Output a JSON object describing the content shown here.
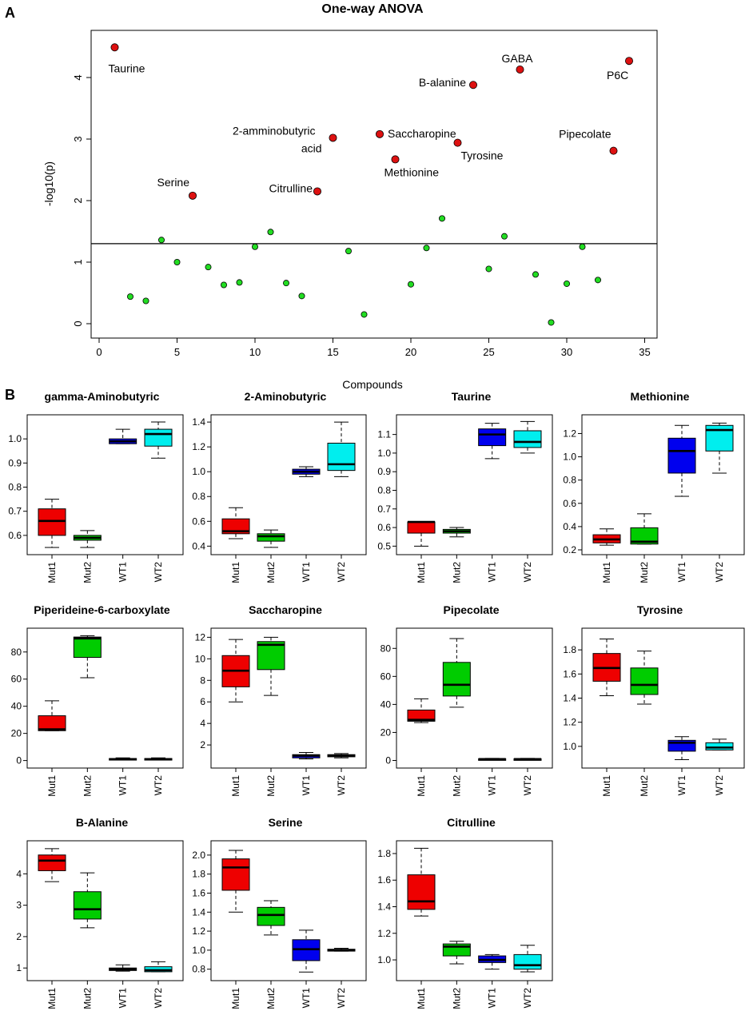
{
  "panel_a": {
    "letter": "A",
    "chart_data": {
      "type": "scatter",
      "title": "One-way ANOVA",
      "xlabel": "Compounds",
      "ylabel": "-log10(p)",
      "xlim": [
        0,
        35
      ],
      "ylim": [
        0,
        4.6
      ],
      "xticks": [
        0,
        5,
        10,
        15,
        20,
        25,
        30,
        35
      ],
      "yticks": [
        0,
        1,
        2,
        3,
        4
      ],
      "threshold": 1.3,
      "colors": {
        "significant": "#dd1111",
        "not_significant": "#22dd22"
      },
      "points": [
        {
          "x": 1,
          "y": 4.49,
          "sig": true,
          "label": "Taurine"
        },
        {
          "x": 2,
          "y": 0.44,
          "sig": false
        },
        {
          "x": 3,
          "y": 0.37,
          "sig": false
        },
        {
          "x": 4,
          "y": 1.36,
          "sig": false
        },
        {
          "x": 5,
          "y": 1.0,
          "sig": false
        },
        {
          "x": 6,
          "y": 2.08,
          "sig": true,
          "label": "Serine"
        },
        {
          "x": 7,
          "y": 0.92,
          "sig": false
        },
        {
          "x": 8,
          "y": 0.63,
          "sig": false
        },
        {
          "x": 9,
          "y": 0.67,
          "sig": false
        },
        {
          "x": 10,
          "y": 1.25,
          "sig": false
        },
        {
          "x": 11,
          "y": 1.49,
          "sig": false
        },
        {
          "x": 12,
          "y": 0.66,
          "sig": false
        },
        {
          "x": 13,
          "y": 0.45,
          "sig": false
        },
        {
          "x": 14,
          "y": 2.15,
          "sig": true,
          "label": "Citrulline"
        },
        {
          "x": 15,
          "y": 3.02,
          "sig": true,
          "label": "2-amminobutyric acid"
        },
        {
          "x": 16,
          "y": 1.18,
          "sig": false
        },
        {
          "x": 17,
          "y": 0.15,
          "sig": false
        },
        {
          "x": 18,
          "y": 3.08,
          "sig": true,
          "label": "Saccharopine"
        },
        {
          "x": 19,
          "y": 2.67,
          "sig": true,
          "label": "Methionine"
        },
        {
          "x": 20,
          "y": 0.64,
          "sig": false
        },
        {
          "x": 21,
          "y": 1.23,
          "sig": false
        },
        {
          "x": 22,
          "y": 1.71,
          "sig": false
        },
        {
          "x": 23,
          "y": 2.94,
          "sig": true,
          "label": "Tyrosine"
        },
        {
          "x": 24,
          "y": 3.88,
          "sig": true,
          "label": "B-alanine"
        },
        {
          "x": 25,
          "y": 0.89,
          "sig": false
        },
        {
          "x": 26,
          "y": 1.42,
          "sig": false
        },
        {
          "x": 27,
          "y": 4.13,
          "sig": true,
          "label": "GABA"
        },
        {
          "x": 28,
          "y": 0.8,
          "sig": false
        },
        {
          "x": 29,
          "y": 0.02,
          "sig": false
        },
        {
          "x": 30,
          "y": 0.65,
          "sig": false
        },
        {
          "x": 31,
          "y": 1.25,
          "sig": false
        },
        {
          "x": 32,
          "y": 0.71,
          "sig": false
        },
        {
          "x": 33,
          "y": 2.81,
          "sig": true,
          "label": "Pipecolate"
        },
        {
          "x": 34,
          "y": 4.27,
          "sig": true,
          "label": "P6C"
        }
      ]
    }
  },
  "panel_b": {
    "letter": "B",
    "groups": [
      "Mut1",
      "Mut2",
      "WT1",
      "WT2"
    ],
    "group_colors": [
      "#ee0000",
      "#00cc00",
      "#0000ee",
      "#00eeee"
    ],
    "chart_data": [
      {
        "type": "box",
        "title": "gamma-Aminobutyric",
        "ylim": [
          0.54,
          1.08
        ],
        "yticks": [
          0.6,
          0.7,
          0.8,
          0.9,
          1.0
        ],
        "ytick_labels": [
          "0.6",
          "0.7",
          "0.8",
          "0.9",
          "1.0"
        ],
        "boxes": [
          {
            "group": "Mut1",
            "min": 0.55,
            "q1": 0.6,
            "median": 0.66,
            "q3": 0.71,
            "max": 0.75
          },
          {
            "group": "Mut2",
            "min": 0.55,
            "q1": 0.58,
            "median": 0.59,
            "q3": 0.6,
            "max": 0.62
          },
          {
            "group": "WT1",
            "min": 0.98,
            "q1": 0.98,
            "median": 0.99,
            "q3": 1.0,
            "max": 1.04
          },
          {
            "group": "WT2",
            "min": 0.92,
            "q1": 0.97,
            "median": 1.02,
            "q3": 1.04,
            "max": 1.07
          }
        ]
      },
      {
        "type": "box",
        "title": "2-Aminobutyric",
        "ylim": [
          0.37,
          1.42
        ],
        "yticks": [
          0.4,
          0.6,
          0.8,
          1.0,
          1.2,
          1.4
        ],
        "ytick_labels": [
          "0.4",
          "0.6",
          "0.8",
          "1.0",
          "1.2",
          "1.4"
        ],
        "boxes": [
          {
            "group": "Mut1",
            "min": 0.46,
            "q1": 0.5,
            "median": 0.52,
            "q3": 0.62,
            "max": 0.71
          },
          {
            "group": "Mut2",
            "min": 0.39,
            "q1": 0.44,
            "median": 0.48,
            "q3": 0.5,
            "max": 0.53
          },
          {
            "group": "WT1",
            "min": 0.96,
            "q1": 0.98,
            "median": 1.0,
            "q3": 1.02,
            "max": 1.04
          },
          {
            "group": "WT2",
            "min": 0.96,
            "q1": 1.01,
            "median": 1.06,
            "q3": 1.23,
            "max": 1.4
          }
        ]
      },
      {
        "type": "box",
        "title": "Taurine",
        "ylim": [
          0.48,
          1.18
        ],
        "yticks": [
          0.5,
          0.6,
          0.7,
          0.8,
          0.9,
          1.0,
          1.1
        ],
        "ytick_labels": [
          "0.5",
          "0.6",
          "0.7",
          "0.8",
          "0.9",
          "1.0",
          "1.1"
        ],
        "boxes": [
          {
            "group": "Mut1",
            "min": 0.5,
            "q1": 0.57,
            "median": 0.63,
            "q3": 0.63,
            "max": 0.63
          },
          {
            "group": "Mut2",
            "min": 0.55,
            "q1": 0.57,
            "median": 0.58,
            "q3": 0.59,
            "max": 0.6
          },
          {
            "group": "WT1",
            "min": 0.97,
            "q1": 1.04,
            "median": 1.1,
            "q3": 1.13,
            "max": 1.16
          },
          {
            "group": "WT2",
            "min": 1.0,
            "q1": 1.03,
            "median": 1.06,
            "q3": 1.12,
            "max": 1.17
          }
        ]
      },
      {
        "type": "box",
        "title": "Methionine",
        "ylim": [
          0.2,
          1.32
        ],
        "yticks": [
          0.2,
          0.4,
          0.6,
          0.8,
          1.0,
          1.2
        ],
        "ytick_labels": [
          "0.2",
          "0.4",
          "0.6",
          "0.8",
          "1.0",
          "1.2"
        ],
        "boxes": [
          {
            "group": "Mut1",
            "min": 0.24,
            "q1": 0.26,
            "median": 0.29,
            "q3": 0.33,
            "max": 0.38
          },
          {
            "group": "Mut2",
            "min": 0.25,
            "q1": 0.25,
            "median": 0.27,
            "q3": 0.39,
            "max": 0.51
          },
          {
            "group": "WT1",
            "min": 0.66,
            "q1": 0.86,
            "median": 1.05,
            "q3": 1.16,
            "max": 1.27
          },
          {
            "group": "WT2",
            "min": 0.86,
            "q1": 1.05,
            "median": 1.23,
            "q3": 1.27,
            "max": 1.29
          }
        ]
      },
      {
        "type": "box",
        "title": "Piperideine-6-carboxylate",
        "ylim": [
          -2,
          94
        ],
        "yticks": [
          0,
          20,
          40,
          60,
          80
        ],
        "ytick_labels": [
          "0",
          "20",
          "40",
          "60",
          "80"
        ],
        "boxes": [
          {
            "group": "Mut1",
            "min": 22,
            "q1": 22,
            "median": 23,
            "q3": 33,
            "max": 44
          },
          {
            "group": "Mut2",
            "min": 61,
            "q1": 76,
            "median": 90,
            "q3": 91,
            "max": 92
          },
          {
            "group": "WT1",
            "min": 1,
            "q1": 1,
            "median": 1,
            "q3": 1.5,
            "max": 2
          },
          {
            "group": "WT2",
            "min": 1,
            "q1": 1,
            "median": 1,
            "q3": 1.5,
            "max": 2
          }
        ]
      },
      {
        "type": "box",
        "title": "Saccharopine",
        "ylim": [
          0.3,
          12.4
        ],
        "yticks": [
          2,
          4,
          6,
          8,
          10,
          12
        ],
        "ytick_labels": [
          "2",
          "4",
          "6",
          "8",
          "10",
          "12"
        ],
        "boxes": [
          {
            "group": "Mut1",
            "min": 6.0,
            "q1": 7.4,
            "median": 8.9,
            "q3": 10.3,
            "max": 11.8
          },
          {
            "group": "Mut2",
            "min": 6.6,
            "q1": 9.0,
            "median": 11.3,
            "q3": 11.6,
            "max": 12.0
          },
          {
            "group": "WT1",
            "min": 0.7,
            "q1": 0.8,
            "median": 1.0,
            "q3": 1.1,
            "max": 1.3
          },
          {
            "group": "WT2",
            "min": 0.8,
            "q1": 0.9,
            "median": 1.0,
            "q3": 1.1,
            "max": 1.2
          }
        ]
      },
      {
        "type": "box",
        "title": "Pipecolate",
        "ylim": [
          -2,
          91
        ],
        "yticks": [
          0,
          20,
          40,
          60,
          80
        ],
        "ytick_labels": [
          "0",
          "20",
          "40",
          "60",
          "80"
        ],
        "boxes": [
          {
            "group": "Mut1",
            "min": 27,
            "q1": 28,
            "median": 29,
            "q3": 36,
            "max": 44
          },
          {
            "group": "Mut2",
            "min": 38,
            "q1": 46,
            "median": 54,
            "q3": 70,
            "max": 87
          },
          {
            "group": "WT1",
            "min": 0.5,
            "q1": 0.7,
            "median": 1,
            "q3": 1.2,
            "max": 1.5
          },
          {
            "group": "WT2",
            "min": 0.5,
            "q1": 0.7,
            "median": 1,
            "q3": 1.2,
            "max": 1.5
          }
        ]
      },
      {
        "type": "box",
        "title": "Tyrosine",
        "ylim": [
          0.86,
          1.94
        ],
        "yticks": [
          1.0,
          1.2,
          1.4,
          1.6,
          1.8
        ],
        "ytick_labels": [
          "1.0",
          "1.2",
          "1.4",
          "1.6",
          "1.8"
        ],
        "boxes": [
          {
            "group": "Mut1",
            "min": 1.42,
            "q1": 1.54,
            "median": 1.65,
            "q3": 1.77,
            "max": 1.89
          },
          {
            "group": "Mut2",
            "min": 1.35,
            "q1": 1.43,
            "median": 1.51,
            "q3": 1.65,
            "max": 1.79
          },
          {
            "group": "WT1",
            "min": 0.89,
            "q1": 0.96,
            "median": 1.03,
            "q3": 1.05,
            "max": 1.08
          },
          {
            "group": "WT2",
            "min": 0.97,
            "q1": 0.97,
            "median": 0.99,
            "q3": 1.03,
            "max": 1.06
          }
        ]
      },
      {
        "type": "box",
        "title": "B-Alanine",
        "ylim": [
          0.75,
          4.9
        ],
        "yticks": [
          1,
          2,
          3,
          4
        ],
        "ytick_labels": [
          "1",
          "2",
          "3",
          "4"
        ],
        "boxes": [
          {
            "group": "Mut1",
            "min": 3.75,
            "q1": 4.1,
            "median": 4.42,
            "q3": 4.6,
            "max": 4.8
          },
          {
            "group": "Mut2",
            "min": 2.28,
            "q1": 2.56,
            "median": 2.87,
            "q3": 3.43,
            "max": 4.03
          },
          {
            "group": "WT1",
            "min": 0.9,
            "q1": 0.92,
            "median": 0.96,
            "q3": 1.0,
            "max": 1.1
          },
          {
            "group": "WT2",
            "min": 0.88,
            "q1": 0.88,
            "median": 0.93,
            "q3": 1.04,
            "max": 1.2
          }
        ]
      },
      {
        "type": "box",
        "title": "Serine",
        "ylim": [
          0.73,
          2.1
        ],
        "yticks": [
          0.8,
          1.0,
          1.2,
          1.4,
          1.6,
          1.8,
          2.0
        ],
        "ytick_labels": [
          "0.8",
          "1.0",
          "1.2",
          "1.4",
          "1.6",
          "1.8",
          "2.0"
        ],
        "boxes": [
          {
            "group": "Mut1",
            "min": 1.4,
            "q1": 1.63,
            "median": 1.87,
            "q3": 1.96,
            "max": 2.05
          },
          {
            "group": "Mut2",
            "min": 1.16,
            "q1": 1.26,
            "median": 1.37,
            "q3": 1.45,
            "max": 1.52
          },
          {
            "group": "WT1",
            "min": 0.77,
            "q1": 0.89,
            "median": 1.01,
            "q3": 1.11,
            "max": 1.21
          },
          {
            "group": "WT2",
            "min": 0.99,
            "q1": 0.99,
            "median": 1.0,
            "q3": 1.01,
            "max": 1.02
          }
        ]
      },
      {
        "type": "box",
        "title": "Citrulline",
        "ylim": [
          0.88,
          1.86
        ],
        "yticks": [
          1.0,
          1.2,
          1.4,
          1.6,
          1.8
        ],
        "ytick_labels": [
          "1.0",
          "1.2",
          "1.4",
          "1.6",
          "1.8"
        ],
        "boxes": [
          {
            "group": "Mut1",
            "min": 1.33,
            "q1": 1.38,
            "median": 1.44,
            "q3": 1.64,
            "max": 1.84
          },
          {
            "group": "Mut2",
            "min": 0.97,
            "q1": 1.03,
            "median": 1.1,
            "q3": 1.12,
            "max": 1.14
          },
          {
            "group": "WT1",
            "min": 0.93,
            "q1": 0.98,
            "median": 1.0,
            "q3": 1.03,
            "max": 1.04
          },
          {
            "group": "WT2",
            "min": 0.91,
            "q1": 0.93,
            "median": 0.96,
            "q3": 1.04,
            "max": 1.11
          }
        ]
      }
    ]
  }
}
